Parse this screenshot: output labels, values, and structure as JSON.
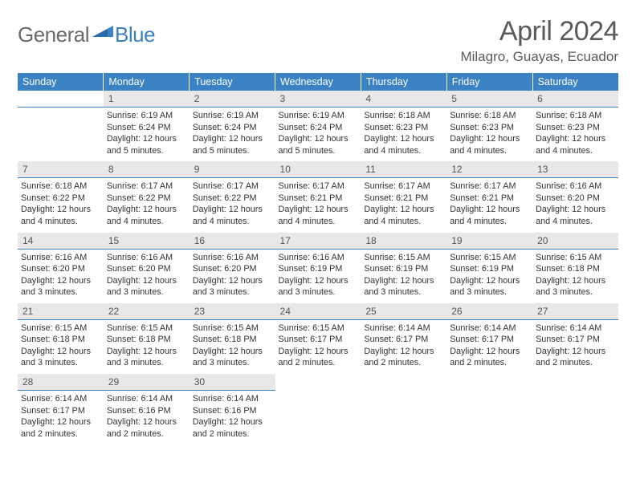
{
  "logo": {
    "text1": "General",
    "text2": "Blue"
  },
  "header": {
    "title": "April 2024",
    "location": "Milagro, Guayas, Ecuador"
  },
  "colors": {
    "header_bg": "#3b82c4",
    "header_text": "#ffffff",
    "daynum_bg": "#e8e8e8",
    "text": "#333333",
    "logo_gray": "#6a6a6a",
    "logo_blue": "#3b82c4"
  },
  "weekdays": [
    "Sunday",
    "Monday",
    "Tuesday",
    "Wednesday",
    "Thursday",
    "Friday",
    "Saturday"
  ],
  "weeks": [
    [
      {
        "day": "",
        "sunrise": "",
        "sunset": "",
        "daylight": ""
      },
      {
        "day": "1",
        "sunrise": "Sunrise: 6:19 AM",
        "sunset": "Sunset: 6:24 PM",
        "daylight": "Daylight: 12 hours and 5 minutes."
      },
      {
        "day": "2",
        "sunrise": "Sunrise: 6:19 AM",
        "sunset": "Sunset: 6:24 PM",
        "daylight": "Daylight: 12 hours and 5 minutes."
      },
      {
        "day": "3",
        "sunrise": "Sunrise: 6:19 AM",
        "sunset": "Sunset: 6:24 PM",
        "daylight": "Daylight: 12 hours and 5 minutes."
      },
      {
        "day": "4",
        "sunrise": "Sunrise: 6:18 AM",
        "sunset": "Sunset: 6:23 PM",
        "daylight": "Daylight: 12 hours and 4 minutes."
      },
      {
        "day": "5",
        "sunrise": "Sunrise: 6:18 AM",
        "sunset": "Sunset: 6:23 PM",
        "daylight": "Daylight: 12 hours and 4 minutes."
      },
      {
        "day": "6",
        "sunrise": "Sunrise: 6:18 AM",
        "sunset": "Sunset: 6:23 PM",
        "daylight": "Daylight: 12 hours and 4 minutes."
      }
    ],
    [
      {
        "day": "7",
        "sunrise": "Sunrise: 6:18 AM",
        "sunset": "Sunset: 6:22 PM",
        "daylight": "Daylight: 12 hours and 4 minutes."
      },
      {
        "day": "8",
        "sunrise": "Sunrise: 6:17 AM",
        "sunset": "Sunset: 6:22 PM",
        "daylight": "Daylight: 12 hours and 4 minutes."
      },
      {
        "day": "9",
        "sunrise": "Sunrise: 6:17 AM",
        "sunset": "Sunset: 6:22 PM",
        "daylight": "Daylight: 12 hours and 4 minutes."
      },
      {
        "day": "10",
        "sunrise": "Sunrise: 6:17 AM",
        "sunset": "Sunset: 6:21 PM",
        "daylight": "Daylight: 12 hours and 4 minutes."
      },
      {
        "day": "11",
        "sunrise": "Sunrise: 6:17 AM",
        "sunset": "Sunset: 6:21 PM",
        "daylight": "Daylight: 12 hours and 4 minutes."
      },
      {
        "day": "12",
        "sunrise": "Sunrise: 6:17 AM",
        "sunset": "Sunset: 6:21 PM",
        "daylight": "Daylight: 12 hours and 4 minutes."
      },
      {
        "day": "13",
        "sunrise": "Sunrise: 6:16 AM",
        "sunset": "Sunset: 6:20 PM",
        "daylight": "Daylight: 12 hours and 4 minutes."
      }
    ],
    [
      {
        "day": "14",
        "sunrise": "Sunrise: 6:16 AM",
        "sunset": "Sunset: 6:20 PM",
        "daylight": "Daylight: 12 hours and 3 minutes."
      },
      {
        "day": "15",
        "sunrise": "Sunrise: 6:16 AM",
        "sunset": "Sunset: 6:20 PM",
        "daylight": "Daylight: 12 hours and 3 minutes."
      },
      {
        "day": "16",
        "sunrise": "Sunrise: 6:16 AM",
        "sunset": "Sunset: 6:20 PM",
        "daylight": "Daylight: 12 hours and 3 minutes."
      },
      {
        "day": "17",
        "sunrise": "Sunrise: 6:16 AM",
        "sunset": "Sunset: 6:19 PM",
        "daylight": "Daylight: 12 hours and 3 minutes."
      },
      {
        "day": "18",
        "sunrise": "Sunrise: 6:15 AM",
        "sunset": "Sunset: 6:19 PM",
        "daylight": "Daylight: 12 hours and 3 minutes."
      },
      {
        "day": "19",
        "sunrise": "Sunrise: 6:15 AM",
        "sunset": "Sunset: 6:19 PM",
        "daylight": "Daylight: 12 hours and 3 minutes."
      },
      {
        "day": "20",
        "sunrise": "Sunrise: 6:15 AM",
        "sunset": "Sunset: 6:18 PM",
        "daylight": "Daylight: 12 hours and 3 minutes."
      }
    ],
    [
      {
        "day": "21",
        "sunrise": "Sunrise: 6:15 AM",
        "sunset": "Sunset: 6:18 PM",
        "daylight": "Daylight: 12 hours and 3 minutes."
      },
      {
        "day": "22",
        "sunrise": "Sunrise: 6:15 AM",
        "sunset": "Sunset: 6:18 PM",
        "daylight": "Daylight: 12 hours and 3 minutes."
      },
      {
        "day": "23",
        "sunrise": "Sunrise: 6:15 AM",
        "sunset": "Sunset: 6:18 PM",
        "daylight": "Daylight: 12 hours and 3 minutes."
      },
      {
        "day": "24",
        "sunrise": "Sunrise: 6:15 AM",
        "sunset": "Sunset: 6:17 PM",
        "daylight": "Daylight: 12 hours and 2 minutes."
      },
      {
        "day": "25",
        "sunrise": "Sunrise: 6:14 AM",
        "sunset": "Sunset: 6:17 PM",
        "daylight": "Daylight: 12 hours and 2 minutes."
      },
      {
        "day": "26",
        "sunrise": "Sunrise: 6:14 AM",
        "sunset": "Sunset: 6:17 PM",
        "daylight": "Daylight: 12 hours and 2 minutes."
      },
      {
        "day": "27",
        "sunrise": "Sunrise: 6:14 AM",
        "sunset": "Sunset: 6:17 PM",
        "daylight": "Daylight: 12 hours and 2 minutes."
      }
    ],
    [
      {
        "day": "28",
        "sunrise": "Sunrise: 6:14 AM",
        "sunset": "Sunset: 6:17 PM",
        "daylight": "Daylight: 12 hours and 2 minutes."
      },
      {
        "day": "29",
        "sunrise": "Sunrise: 6:14 AM",
        "sunset": "Sunset: 6:16 PM",
        "daylight": "Daylight: 12 hours and 2 minutes."
      },
      {
        "day": "30",
        "sunrise": "Sunrise: 6:14 AM",
        "sunset": "Sunset: 6:16 PM",
        "daylight": "Daylight: 12 hours and 2 minutes."
      },
      {
        "day": "",
        "sunrise": "",
        "sunset": "",
        "daylight": ""
      },
      {
        "day": "",
        "sunrise": "",
        "sunset": "",
        "daylight": ""
      },
      {
        "day": "",
        "sunrise": "",
        "sunset": "",
        "daylight": ""
      },
      {
        "day": "",
        "sunrise": "",
        "sunset": "",
        "daylight": ""
      }
    ]
  ]
}
